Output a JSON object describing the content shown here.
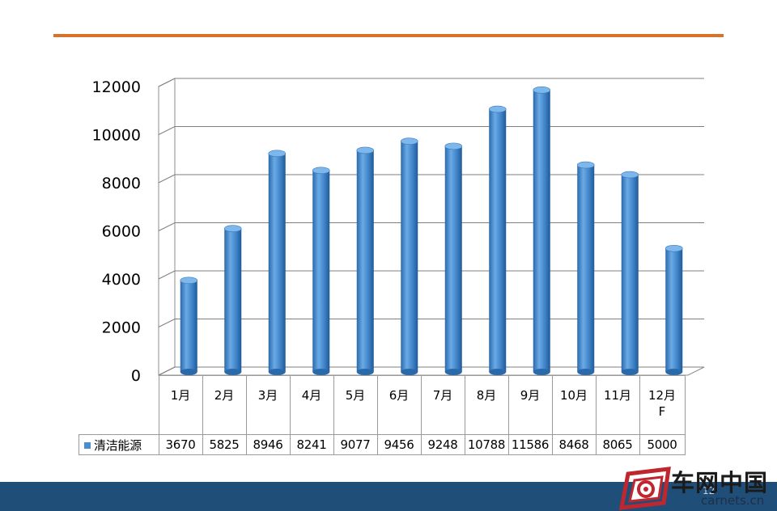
{
  "colors": {
    "rule": "#d8712a",
    "bar": "#4a8fd0",
    "footer": "#1f4e79"
  },
  "chart_data": {
    "type": "bar",
    "categories": [
      "1月",
      "2月",
      "3月",
      "4月",
      "5月",
      "6月",
      "7月",
      "8月",
      "9月",
      "10月",
      "11月",
      "12月F"
    ],
    "series": [
      {
        "name": "清洁能源",
        "values": [
          3670,
          5825,
          8946,
          8241,
          9077,
          9456,
          9248,
          10788,
          11586,
          8468,
          8065,
          5000
        ]
      }
    ],
    "ylim": [
      0,
      12000
    ],
    "yticks": [
      "0",
      "2000",
      "4000",
      "6000",
      "8000",
      "10000",
      "12000"
    ],
    "grid": true,
    "style": "3d cylinder",
    "legend": "data table"
  },
  "footer": {
    "page_number": "12"
  },
  "logo": {
    "name": "车网中国",
    "url": "carnets.cn"
  }
}
